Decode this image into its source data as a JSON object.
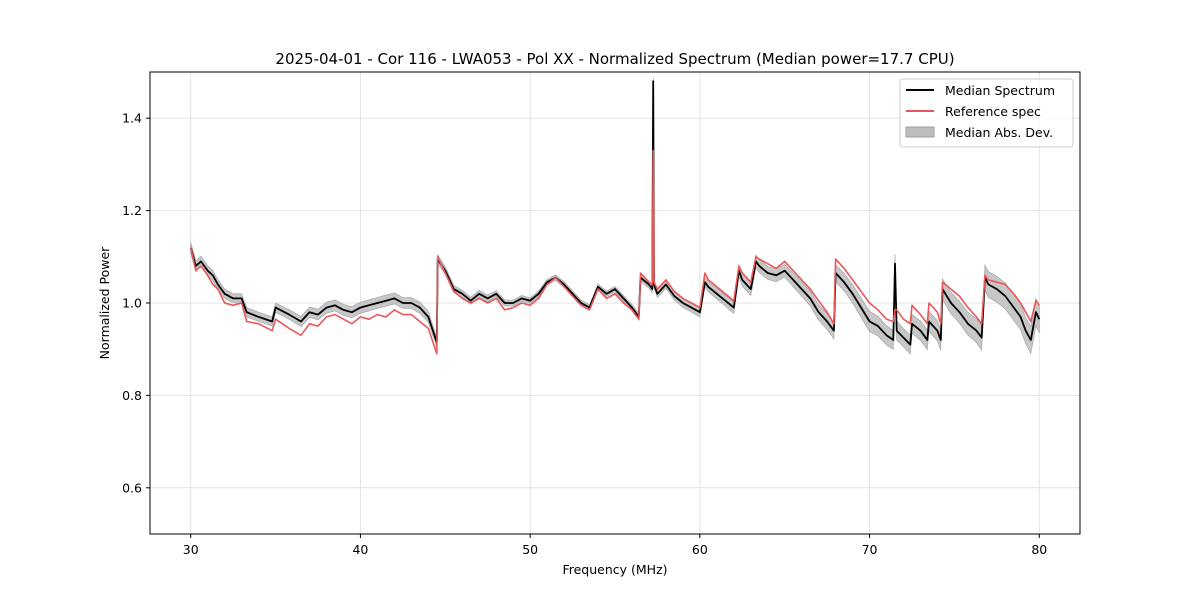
{
  "chart_data": {
    "type": "line",
    "title": "2025-04-01 - Cor 116 - LWA053 - Pol XX - Normalized Spectrum (Median power=17.7 CPU)",
    "xlabel": "Frequency (MHz)",
    "ylabel": "Normalized Power",
    "xlim": [
      27.6,
      82.4
    ],
    "ylim": [
      0.5,
      1.5
    ],
    "xticks": [
      30,
      40,
      50,
      60,
      70,
      80
    ],
    "yticks": [
      0.6,
      0.8,
      1.0,
      1.2,
      1.4
    ],
    "xtick_labels": [
      "30",
      "40",
      "50",
      "60",
      "70",
      "80"
    ],
    "ytick_labels": [
      "0.6",
      "0.8",
      "1.0",
      "1.2",
      "1.4"
    ],
    "grid": true,
    "legend_position": "top-right",
    "colors": {
      "median": "#000000",
      "reference": "#e8585a",
      "mad_fill": "#bdbdbd",
      "mad_edge": "#9e9e9e"
    },
    "series": [
      {
        "name": "Median Spectrum",
        "x": [
          30.0,
          30.3,
          30.6,
          31.0,
          31.3,
          31.6,
          32.0,
          32.5,
          33.0,
          33.3,
          34.0,
          34.8,
          35.0,
          35.8,
          36.5,
          37.0,
          37.5,
          38.0,
          38.5,
          39.0,
          39.5,
          40.0,
          40.5,
          41.0,
          41.5,
          42.0,
          42.5,
          43.0,
          43.5,
          44.0,
          44.5,
          44.55,
          45.0,
          45.5,
          46.0,
          46.5,
          47.0,
          47.5,
          48.0,
          48.5,
          49.0,
          49.5,
          50.0,
          50.5,
          51.0,
          51.5,
          52.0,
          52.5,
          53.0,
          53.5,
          54.0,
          54.5,
          55.0,
          55.5,
          56.0,
          56.4,
          56.5,
          57.0,
          57.2,
          57.25,
          57.3,
          57.5,
          58.0,
          58.5,
          59.0,
          59.5,
          60.0,
          60.3,
          60.5,
          61.0,
          61.5,
          62.0,
          62.3,
          62.5,
          63.0,
          63.3,
          63.5,
          64.0,
          64.5,
          65.0,
          65.5,
          66.0,
          66.5,
          67.0,
          67.5,
          67.9,
          68.0,
          68.5,
          69.0,
          69.5,
          70.0,
          70.5,
          71.0,
          71.4,
          71.5,
          71.6,
          72.0,
          72.4,
          72.5,
          73.0,
          73.4,
          73.5,
          74.0,
          74.2,
          74.3,
          74.8,
          75.3,
          75.8,
          76.3,
          76.6,
          76.8,
          77.0,
          77.5,
          78.0,
          78.5,
          78.9,
          79.2,
          79.5,
          79.8,
          80.0
        ],
        "values": [
          1.12,
          1.08,
          1.09,
          1.07,
          1.06,
          1.04,
          1.02,
          1.01,
          1.01,
          0.98,
          0.97,
          0.96,
          0.99,
          0.975,
          0.96,
          0.98,
          0.975,
          0.99,
          0.995,
          0.985,
          0.98,
          0.99,
          0.995,
          1.0,
          1.005,
          1.01,
          1.0,
          1.0,
          0.99,
          0.97,
          0.915,
          1.095,
          1.07,
          1.03,
          1.02,
          1.005,
          1.02,
          1.01,
          1.02,
          1.0,
          1.0,
          1.01,
          1.005,
          1.02,
          1.045,
          1.055,
          1.04,
          1.02,
          1.0,
          0.99,
          1.035,
          1.02,
          1.03,
          1.01,
          0.99,
          0.97,
          1.055,
          1.04,
          1.03,
          1.48,
          1.04,
          1.02,
          1.04,
          1.015,
          1.0,
          0.99,
          0.98,
          1.045,
          1.035,
          1.02,
          1.005,
          0.99,
          1.07,
          1.05,
          1.03,
          1.09,
          1.08,
          1.065,
          1.06,
          1.07,
          1.05,
          1.03,
          1.01,
          0.98,
          0.96,
          0.94,
          1.065,
          1.045,
          1.02,
          0.99,
          0.96,
          0.95,
          0.93,
          0.92,
          1.085,
          0.94,
          0.925,
          0.91,
          0.955,
          0.94,
          0.92,
          0.96,
          0.94,
          0.92,
          1.03,
          1.0,
          0.98,
          0.955,
          0.94,
          0.925,
          1.055,
          1.04,
          1.03,
          1.015,
          0.99,
          0.97,
          0.94,
          0.92,
          0.98,
          0.965
        ]
      },
      {
        "name": "Reference spec",
        "x": [
          30.0,
          30.3,
          30.6,
          31.0,
          31.3,
          31.6,
          32.0,
          32.5,
          33.0,
          33.3,
          34.0,
          34.8,
          35.0,
          35.8,
          36.5,
          37.0,
          37.5,
          38.0,
          38.5,
          39.0,
          39.5,
          40.0,
          40.5,
          41.0,
          41.5,
          42.0,
          42.5,
          43.0,
          43.5,
          44.0,
          44.5,
          44.55,
          45.0,
          45.5,
          46.0,
          46.5,
          47.0,
          47.5,
          48.0,
          48.5,
          49.0,
          49.5,
          50.0,
          50.5,
          51.0,
          51.5,
          52.0,
          52.5,
          53.0,
          53.5,
          54.0,
          54.5,
          55.0,
          55.5,
          56.0,
          56.4,
          56.5,
          57.0,
          57.2,
          57.25,
          57.3,
          57.5,
          58.0,
          58.5,
          59.0,
          59.5,
          60.0,
          60.3,
          60.5,
          61.0,
          61.5,
          62.0,
          62.3,
          62.5,
          63.0,
          63.3,
          63.5,
          64.0,
          64.5,
          65.0,
          65.5,
          66.0,
          66.5,
          67.0,
          67.5,
          67.9,
          68.0,
          68.5,
          69.0,
          69.5,
          70.0,
          70.5,
          71.0,
          71.4,
          71.5,
          71.6,
          72.0,
          72.4,
          72.5,
          73.0,
          73.4,
          73.5,
          74.0,
          74.2,
          74.3,
          74.8,
          75.3,
          75.8,
          76.3,
          76.6,
          76.8,
          77.0,
          77.5,
          78.0,
          78.5,
          78.9,
          79.2,
          79.5,
          79.8,
          80.0
        ],
        "values": [
          1.12,
          1.07,
          1.08,
          1.06,
          1.04,
          1.03,
          1.0,
          0.995,
          1.0,
          0.96,
          0.955,
          0.94,
          0.965,
          0.945,
          0.93,
          0.955,
          0.95,
          0.97,
          0.975,
          0.965,
          0.955,
          0.97,
          0.965,
          0.975,
          0.97,
          0.985,
          0.975,
          0.975,
          0.96,
          0.945,
          0.89,
          1.1,
          1.065,
          1.025,
          1.01,
          1.0,
          1.01,
          1.0,
          1.01,
          0.985,
          0.99,
          1.0,
          0.995,
          1.01,
          1.04,
          1.055,
          1.035,
          1.015,
          0.995,
          0.985,
          1.03,
          1.01,
          1.02,
          1.0,
          0.985,
          0.965,
          1.065,
          1.045,
          1.04,
          1.33,
          1.045,
          1.03,
          1.05,
          1.025,
          1.01,
          1.0,
          0.99,
          1.065,
          1.05,
          1.035,
          1.02,
          1.005,
          1.08,
          1.065,
          1.045,
          1.1,
          1.095,
          1.085,
          1.075,
          1.09,
          1.07,
          1.05,
          1.03,
          1.005,
          0.98,
          0.955,
          1.095,
          1.075,
          1.05,
          1.025,
          1.0,
          0.985,
          0.965,
          0.96,
          0.985,
          0.985,
          0.965,
          0.955,
          0.995,
          0.975,
          0.955,
          1.0,
          0.98,
          0.955,
          1.045,
          1.03,
          1.015,
          0.99,
          0.97,
          0.955,
          1.06,
          1.05,
          1.045,
          1.04,
          1.02,
          1.0,
          0.98,
          0.96,
          1.005,
          0.995
        ]
      },
      {
        "name": "Median Abs. Dev.",
        "x": [
          30.0,
          32.0,
          35.0,
          38.0,
          41.0,
          44.0,
          45.0,
          50.0,
          55.0,
          57.0,
          60.0,
          63.0,
          65.0,
          68.0,
          70.0,
          72.0,
          74.0,
          76.0,
          77.0,
          79.0,
          80.0
        ],
        "values": [
          0.012,
          0.01,
          0.01,
          0.012,
          0.012,
          0.012,
          0.008,
          0.006,
          0.006,
          0.008,
          0.01,
          0.014,
          0.014,
          0.018,
          0.022,
          0.02,
          0.022,
          0.025,
          0.028,
          0.028,
          0.03
        ]
      }
    ]
  }
}
